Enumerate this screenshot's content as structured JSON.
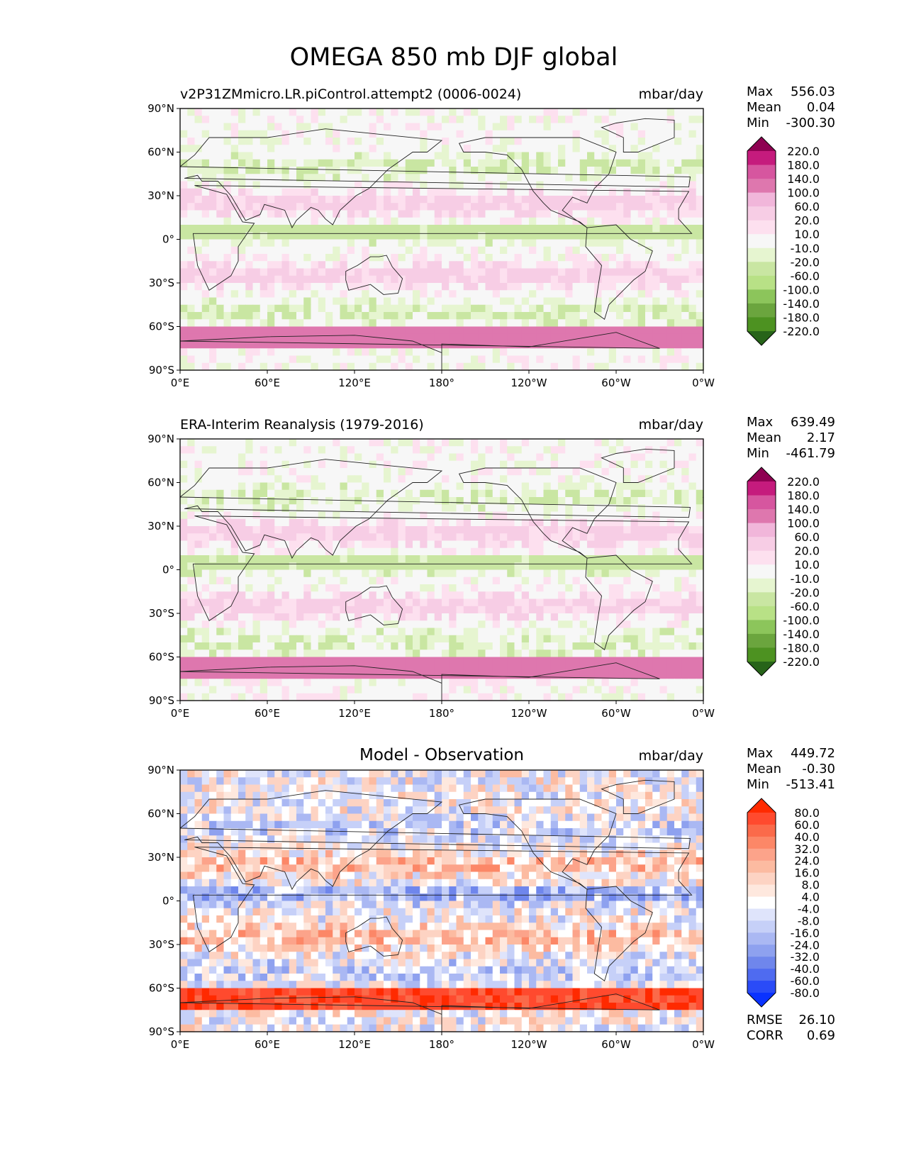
{
  "figure": {
    "title": "OMEGA 850 mb DJF global"
  },
  "chart_data": [
    {
      "type": "heatmap",
      "title": "v2P31ZMmicro.LR.piControl.attempt2 (0006-0024)",
      "units": "mbar/day",
      "stats": [
        {
          "label": "Max",
          "value": "556.03"
        },
        {
          "label": "Mean",
          "value": "0.04"
        },
        {
          "label": "Min",
          "value": "-300.30"
        }
      ],
      "colorbar": {
        "levels": [
          "220.0",
          "180.0",
          "140.0",
          "100.0",
          "60.0",
          "20.0",
          "10.0",
          "-10.0",
          "-20.0",
          "-60.0",
          "-100.0",
          "-140.0",
          "-180.0",
          "-220.0"
        ],
        "colors": [
          "#8e0152",
          "#c51b7d",
          "#d6569f",
          "#de77ae",
          "#f1b6da",
          "#f7cde5",
          "#fde0ef",
          "#f7f7f7",
          "#e6f5d0",
          "#c9e6a2",
          "#b8e186",
          "#8cc55b",
          "#6ba53e",
          "#4d9221",
          "#276419"
        ]
      }
    },
    {
      "type": "heatmap",
      "title": "ERA-Interim Reanalysis (1979-2016)",
      "units": "mbar/day",
      "stats": [
        {
          "label": "Max",
          "value": "639.49"
        },
        {
          "label": "Mean",
          "value": "2.17"
        },
        {
          "label": "Min",
          "value": "-461.79"
        }
      ],
      "colorbar": {
        "levels": [
          "220.0",
          "180.0",
          "140.0",
          "100.0",
          "60.0",
          "20.0",
          "10.0",
          "-10.0",
          "-20.0",
          "-60.0",
          "-100.0",
          "-140.0",
          "-180.0",
          "-220.0"
        ],
        "colors": [
          "#8e0152",
          "#c51b7d",
          "#d6569f",
          "#de77ae",
          "#f1b6da",
          "#f7cde5",
          "#fde0ef",
          "#f7f7f7",
          "#e6f5d0",
          "#c9e6a2",
          "#b8e186",
          "#8cc55b",
          "#6ba53e",
          "#4d9221",
          "#276419"
        ]
      }
    },
    {
      "type": "heatmap",
      "title": "Model - Observation",
      "units": "mbar/day",
      "stats": [
        {
          "label": "Max",
          "value": "449.72"
        },
        {
          "label": "Mean",
          "value": "-0.30"
        },
        {
          "label": "Min",
          "value": "-513.41"
        }
      ],
      "extra_stats": [
        {
          "label": "RMSE",
          "value": "26.10"
        },
        {
          "label": "CORR",
          "value": "0.69"
        }
      ],
      "colorbar": {
        "levels": [
          "80.0",
          "60.0",
          "40.0",
          "32.0",
          "24.0",
          "16.0",
          "8.0",
          "4.0",
          "-4.0",
          "-8.0",
          "-16.0",
          "-24.0",
          "-32.0",
          "-40.0",
          "-60.0",
          "-80.0"
        ],
        "colors": [
          "#ff2a00",
          "#ff4a2e",
          "#fb6a4a",
          "#fc8767",
          "#fca38a",
          "#fcbba1",
          "#fdd3c3",
          "#fee8de",
          "#ffffff",
          "#dfe4fb",
          "#c6d0f8",
          "#aab8f3",
          "#8ea1ef",
          "#6f86ec",
          "#4f6bf0",
          "#2a4bf7",
          "#0a32ff"
        ]
      }
    }
  ],
  "axes": {
    "x_ticks": [
      "0°E",
      "60°E",
      "120°E",
      "180°",
      "120°W",
      "60°W",
      "0°W"
    ],
    "y_ticks": [
      "90°N",
      "60°N",
      "30°N",
      "0°",
      "30°S",
      "60°S",
      "90°S"
    ]
  }
}
